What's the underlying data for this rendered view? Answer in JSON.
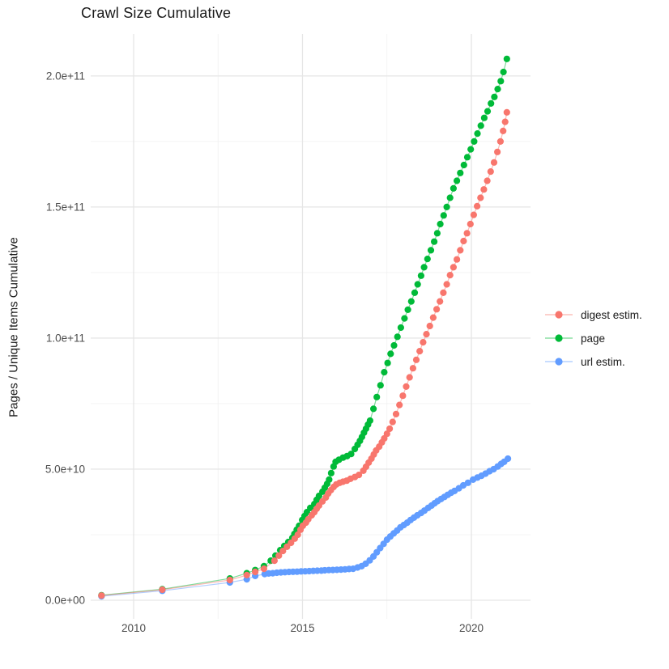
{
  "chart_data": {
    "type": "scatter",
    "title": "Crawl Size Cumulative",
    "xlabel": "",
    "ylabel": "Pages / Unique Items Cumulative",
    "grid": true,
    "legend_position": "right",
    "plot_background": "#FFFFFF",
    "grid_color": "#EBEBEB",
    "xlim": [
      2008.73,
      2021.75
    ],
    "ylim": [
      -7100000000,
      216000000000
    ],
    "x_ticks": {
      "values": [
        2010,
        2015,
        2020
      ],
      "labels": [
        "2010",
        "2015",
        "2020"
      ],
      "minor": [
        2012.5,
        2017.5
      ]
    },
    "y_ticks": {
      "values": [
        0,
        50000000000.0,
        100000000000.0,
        150000000000.0,
        200000000000.0
      ],
      "labels": [
        "0.0e+00",
        "5.0e+10",
        "1.0e+11",
        "1.5e+11",
        "2.0e+11"
      ],
      "minor": [
        25000000000.0,
        75000000000.0,
        125000000000.0,
        175000000000.0
      ]
    },
    "series": [
      {
        "name": "digest estim.",
        "color": "#F8766D",
        "points": [
          [
            2009.05,
            1800000000.0
          ],
          [
            2010.85,
            4000000000.0
          ],
          [
            2012.85,
            7700000000.0
          ],
          [
            2013.35,
            9600000000.0
          ],
          [
            2013.6,
            10800000000.0
          ],
          [
            2013.86,
            12000000000.0
          ],
          [
            2014.17,
            15100000000.0
          ],
          [
            2014.3,
            17000000000.0
          ],
          [
            2014.42,
            18800000000.0
          ],
          [
            2014.54,
            20400000000.0
          ],
          [
            2014.66,
            21900000000.0
          ],
          [
            2014.77,
            23500000000.0
          ],
          [
            2014.86,
            25000000000.0
          ],
          [
            2014.94,
            26900000000.0
          ],
          [
            2015.01,
            28400000000.0
          ],
          [
            2015.1,
            29600000000.0
          ],
          [
            2015.17,
            30900000000.0
          ],
          [
            2015.27,
            32400000000.0
          ],
          [
            2015.35,
            33600000000.0
          ],
          [
            2015.42,
            34900000000.0
          ],
          [
            2015.49,
            36100000000.0
          ],
          [
            2015.59,
            37700000000.0
          ],
          [
            2015.69,
            39200000000.0
          ],
          [
            2015.76,
            40700000000.0
          ],
          [
            2015.84,
            42000000000.0
          ],
          [
            2015.92,
            43200000000.0
          ],
          [
            2016.0,
            44200000000.0
          ],
          [
            2016.1,
            44800000000.0
          ],
          [
            2016.2,
            45200000000.0
          ],
          [
            2016.31,
            45600000000.0
          ],
          [
            2016.42,
            46300000000.0
          ],
          [
            2016.55,
            47000000000.0
          ],
          [
            2016.67,
            47800000000.0
          ],
          [
            2016.8,
            49400000000.0
          ],
          [
            2016.88,
            50900000000.0
          ],
          [
            2016.96,
            52500000000.0
          ],
          [
            2017.04,
            54000000000.0
          ],
          [
            2017.11,
            55600000000.0
          ],
          [
            2017.18,
            57100000000.0
          ],
          [
            2017.27,
            58600000000.0
          ],
          [
            2017.35,
            60200000000.0
          ],
          [
            2017.42,
            61700000000.0
          ],
          [
            2017.5,
            63500000000.0
          ],
          [
            2017.58,
            65400000000.0
          ],
          [
            2017.67,
            68000000000.0
          ],
          [
            2017.77,
            71000000000.0
          ],
          [
            2017.87,
            74500000000.0
          ],
          [
            2017.97,
            78000000000.0
          ],
          [
            2018.07,
            81500000000.0
          ],
          [
            2018.17,
            85000000000.0
          ],
          [
            2018.27,
            88500000000.0
          ],
          [
            2018.37,
            91700000000.0
          ],
          [
            2018.47,
            95000000000.0
          ],
          [
            2018.57,
            98400000000.0
          ],
          [
            2018.67,
            101500000000.0
          ],
          [
            2018.77,
            104600000000.0
          ],
          [
            2018.87,
            107800000000.0
          ],
          [
            2018.97,
            111000000000.0
          ],
          [
            2019.07,
            114000000000.0
          ],
          [
            2019.17,
            117300000000.0
          ],
          [
            2019.27,
            120500000000.0
          ],
          [
            2019.37,
            124000000000.0
          ],
          [
            2019.47,
            127000000000.0
          ],
          [
            2019.57,
            130000000000.0
          ],
          [
            2019.67,
            133500000000.0
          ],
          [
            2019.77,
            137000000000.0
          ],
          [
            2019.87,
            140000000000.0
          ],
          [
            2019.97,
            143500000000.0
          ],
          [
            2020.07,
            147000000000.0
          ],
          [
            2020.17,
            150300000000.0
          ],
          [
            2020.27,
            153500000000.0
          ],
          [
            2020.37,
            156700000000.0
          ],
          [
            2020.47,
            160000000000.0
          ],
          [
            2020.57,
            163500000000.0
          ],
          [
            2020.67,
            167000000000.0
          ],
          [
            2020.77,
            171000000000.0
          ],
          [
            2020.86,
            175000000000.0
          ],
          [
            2020.94,
            179000000000.0
          ],
          [
            2021.0,
            182500000000.0
          ],
          [
            2021.05,
            186100000000.0
          ]
        ]
      },
      {
        "name": "page",
        "color": "#00BA38",
        "points": [
          [
            2009.05,
            1900000000.0
          ],
          [
            2010.85,
            4200000000.0
          ],
          [
            2012.85,
            8300000000.0
          ],
          [
            2013.35,
            10300000000.0
          ],
          [
            2013.6,
            11500000000.0
          ],
          [
            2013.86,
            13000000000.0
          ],
          [
            2014.06,
            15100000000.0
          ],
          [
            2014.2,
            17000000000.0
          ],
          [
            2014.34,
            19100000000.0
          ],
          [
            2014.46,
            20700000000.0
          ],
          [
            2014.58,
            22200000000.0
          ],
          [
            2014.7,
            23800000000.0
          ],
          [
            2014.76,
            25300000000.0
          ],
          [
            2014.83,
            26900000000.0
          ],
          [
            2014.9,
            28400000000.0
          ],
          [
            2014.99,
            30600000000.0
          ],
          [
            2015.06,
            32100000000.0
          ],
          [
            2015.13,
            33600000000.0
          ],
          [
            2015.23,
            35200000000.0
          ],
          [
            2015.35,
            36700000000.0
          ],
          [
            2015.42,
            38300000000.0
          ],
          [
            2015.49,
            39800000000.0
          ],
          [
            2015.59,
            41400000000.0
          ],
          [
            2015.66,
            42900000000.0
          ],
          [
            2015.73,
            44400000000.0
          ],
          [
            2015.79,
            46000000000.0
          ],
          [
            2015.85,
            48500000000.0
          ],
          [
            2015.92,
            51000000000.0
          ],
          [
            2015.98,
            52800000000.0
          ],
          [
            2016.08,
            53600000000.0
          ],
          [
            2016.2,
            54400000000.0
          ],
          [
            2016.32,
            55000000000.0
          ],
          [
            2016.44,
            55800000000.0
          ],
          [
            2016.55,
            57700000000.0
          ],
          [
            2016.63,
            59300000000.0
          ],
          [
            2016.7,
            60800000000.0
          ],
          [
            2016.76,
            62300000000.0
          ],
          [
            2016.82,
            63900000000.0
          ],
          [
            2016.88,
            65400000000.0
          ],
          [
            2016.94,
            67000000000.0
          ],
          [
            2017.0,
            68500000000.0
          ],
          [
            2017.1,
            73000000000.0
          ],
          [
            2017.2,
            77500000000.0
          ],
          [
            2017.31,
            82000000000.0
          ],
          [
            2017.42,
            87000000000.0
          ],
          [
            2017.52,
            90500000000.0
          ],
          [
            2017.61,
            94000000000.0
          ],
          [
            2017.71,
            97200000000.0
          ],
          [
            2017.81,
            100500000000.0
          ],
          [
            2017.91,
            104000000000.0
          ],
          [
            2018.02,
            107500000000.0
          ],
          [
            2018.12,
            110800000000.0
          ],
          [
            2018.22,
            114000000000.0
          ],
          [
            2018.32,
            117300000000.0
          ],
          [
            2018.41,
            120500000000.0
          ],
          [
            2018.51,
            123800000000.0
          ],
          [
            2018.6,
            127000000000.0
          ],
          [
            2018.7,
            130200000000.0
          ],
          [
            2018.8,
            133500000000.0
          ],
          [
            2018.9,
            136800000000.0
          ],
          [
            2018.99,
            140000000000.0
          ],
          [
            2019.08,
            143500000000.0
          ],
          [
            2019.18,
            146800000000.0
          ],
          [
            2019.27,
            150000000000.0
          ],
          [
            2019.37,
            153500000000.0
          ],
          [
            2019.47,
            157100000000.0
          ],
          [
            2019.57,
            160000000000.0
          ],
          [
            2019.67,
            163000000000.0
          ],
          [
            2019.78,
            166000000000.0
          ],
          [
            2019.88,
            169000000000.0
          ],
          [
            2019.98,
            172000000000.0
          ],
          [
            2020.08,
            175000000000.0
          ],
          [
            2020.18,
            178000000000.0
          ],
          [
            2020.28,
            181000000000.0
          ],
          [
            2020.38,
            184000000000.0
          ],
          [
            2020.48,
            186500000000.0
          ],
          [
            2020.58,
            189500000000.0
          ],
          [
            2020.68,
            192000000000.0
          ],
          [
            2020.78,
            195000000000.0
          ],
          [
            2020.87,
            198000000000.0
          ],
          [
            2020.95,
            201500000000.0
          ],
          [
            2021.05,
            206500000000.0
          ]
        ]
      },
      {
        "name": "url estim.",
        "color": "#619CFF",
        "points": [
          [
            2009.05,
            1500000000.0
          ],
          [
            2010.85,
            3600000000.0
          ],
          [
            2012.85,
            6800000000.0
          ],
          [
            2013.35,
            8000000000.0
          ],
          [
            2013.6,
            9300000000.0
          ],
          [
            2013.88,
            10000000000.0
          ],
          [
            2014.0,
            10200000000.0
          ],
          [
            2014.12,
            10300000000.0
          ],
          [
            2014.24,
            10500000000.0
          ],
          [
            2014.36,
            10600000000.0
          ],
          [
            2014.48,
            10700000000.0
          ],
          [
            2014.6,
            10800000000.0
          ],
          [
            2014.72,
            10850000000.0
          ],
          [
            2014.84,
            10900000000.0
          ],
          [
            2014.96,
            11000000000.0
          ],
          [
            2015.08,
            11050000000.0
          ],
          [
            2015.2,
            11100000000.0
          ],
          [
            2015.32,
            11200000000.0
          ],
          [
            2015.44,
            11250000000.0
          ],
          [
            2015.56,
            11300000000.0
          ],
          [
            2015.66,
            11400000000.0
          ],
          [
            2015.78,
            11500000000.0
          ],
          [
            2015.9,
            11550000000.0
          ],
          [
            2016.02,
            11600000000.0
          ],
          [
            2016.14,
            11700000000.0
          ],
          [
            2016.26,
            11800000000.0
          ],
          [
            2016.38,
            11900000000.0
          ],
          [
            2016.5,
            12000000000.0
          ],
          [
            2016.63,
            12500000000.0
          ],
          [
            2016.75,
            13000000000.0
          ],
          [
            2016.87,
            13900000000.0
          ],
          [
            2016.99,
            15200000000.0
          ],
          [
            2017.1,
            16700000000.0
          ],
          [
            2017.2,
            18300000000.0
          ],
          [
            2017.3,
            19900000000.0
          ],
          [
            2017.4,
            21500000000.0
          ],
          [
            2017.5,
            23100000000.0
          ],
          [
            2017.6,
            24300000000.0
          ],
          [
            2017.7,
            25500000000.0
          ],
          [
            2017.8,
            26600000000.0
          ],
          [
            2017.9,
            27800000000.0
          ],
          [
            2018.0,
            28700000000.0
          ],
          [
            2018.1,
            29600000000.0
          ],
          [
            2018.2,
            30600000000.0
          ],
          [
            2018.3,
            31500000000.0
          ],
          [
            2018.4,
            32400000000.0
          ],
          [
            2018.51,
            33300000000.0
          ],
          [
            2018.61,
            34200000000.0
          ],
          [
            2018.72,
            35200000000.0
          ],
          [
            2018.82,
            36100000000.0
          ],
          [
            2018.91,
            37000000000.0
          ],
          [
            2019.0,
            37800000000.0
          ],
          [
            2019.1,
            38600000000.0
          ],
          [
            2019.2,
            39400000000.0
          ],
          [
            2019.3,
            40200000000.0
          ],
          [
            2019.4,
            41000000000.0
          ],
          [
            2019.5,
            41700000000.0
          ],
          [
            2019.63,
            42700000000.0
          ],
          [
            2019.76,
            43800000000.0
          ],
          [
            2019.9,
            44800000000.0
          ],
          [
            2020.05,
            46000000000.0
          ],
          [
            2020.18,
            46800000000.0
          ],
          [
            2020.3,
            47500000000.0
          ],
          [
            2020.42,
            48300000000.0
          ],
          [
            2020.54,
            49200000000.0
          ],
          [
            2020.66,
            50000000000.0
          ],
          [
            2020.78,
            51000000000.0
          ],
          [
            2020.88,
            52000000000.0
          ],
          [
            2020.97,
            52800000000.0
          ],
          [
            2021.08,
            54000000000.0
          ]
        ]
      }
    ]
  }
}
